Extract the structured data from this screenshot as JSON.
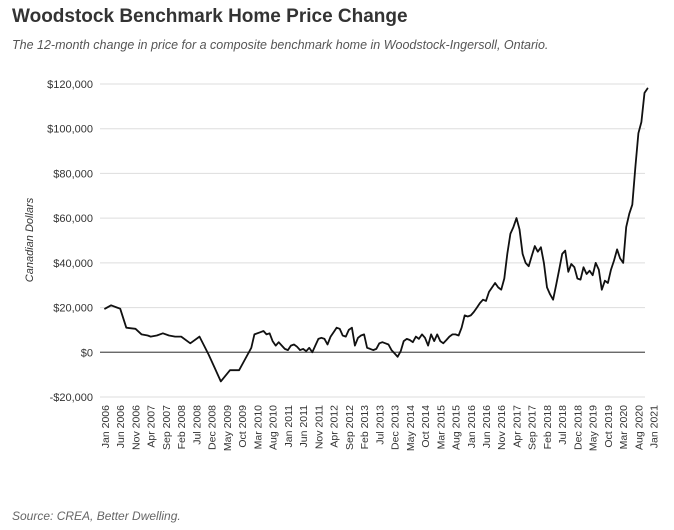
{
  "header": {
    "title": "Woodstock Benchmark Home Price Change",
    "subtitle": "The 12-month change in price for a composite benchmark home in Woodstock-Ingersoll, Ontario."
  },
  "footer": {
    "source": "Source: CREA, Better Dwelling."
  },
  "chart_data": {
    "type": "line",
    "title": "Woodstock Benchmark Home Price Change",
    "xlabel": "",
    "ylabel": "Canadian Dollars",
    "ylim": [
      -20000,
      120000
    ],
    "yticks": [
      -20000,
      0,
      20000,
      40000,
      60000,
      80000,
      100000,
      120000
    ],
    "ytick_labels": [
      "-$20,000",
      "$0",
      "$20,000",
      "$40,000",
      "$60,000",
      "$80,000",
      "$100,000",
      "$120,000"
    ],
    "grid": "horizontal",
    "line_color": "#111111",
    "grid_color": "#dddddd",
    "zero_line_color": "#555555",
    "x_start": "Jan 2006",
    "x_labels": [
      "Jan 2006",
      "Jun 2006",
      "Nov 2006",
      "Apr 2007",
      "Sep 2007",
      "Feb 2008",
      "Jul 2008",
      "Dec 2008",
      "May 2009",
      "Oct 2009",
      "Mar 2010",
      "Aug 2010",
      "Jan 2011",
      "Jun 2011",
      "Nov 2011",
      "Apr 2012",
      "Sep 2012",
      "Feb 2013",
      "Jul 2013",
      "Dec 2013",
      "May 2014",
      "Oct 2014",
      "Mar 2015",
      "Aug 2015",
      "Jan 2016",
      "Jun 2016",
      "Nov 2016",
      "Apr 2017",
      "Sep 2017",
      "Feb 2018",
      "Jul 2018",
      "Dec 2018",
      "May 2019",
      "Oct 2019",
      "Mar 2020",
      "Aug 2020",
      "Jan 2021"
    ],
    "series": [
      {
        "name": "12-month change",
        "points": [
          [
            0,
            19500
          ],
          [
            2,
            21000
          ],
          [
            4,
            20000
          ],
          [
            5,
            19500
          ],
          [
            7,
            11000
          ],
          [
            10,
            10500
          ],
          [
            12,
            8000
          ],
          [
            14,
            7500
          ],
          [
            15,
            7000
          ],
          [
            17,
            7500
          ],
          [
            19,
            8500
          ],
          [
            21,
            7500
          ],
          [
            23,
            7000
          ],
          [
            25,
            7000
          ],
          [
            28,
            4000
          ],
          [
            31,
            7000
          ],
          [
            34,
            -1000
          ],
          [
            36,
            -7000
          ],
          [
            38,
            -13000
          ],
          [
            41,
            -8000
          ],
          [
            44,
            -8000
          ],
          [
            46,
            -3000
          ],
          [
            48,
            2000
          ],
          [
            49,
            8000
          ],
          [
            51,
            9000
          ],
          [
            52,
            9500
          ],
          [
            53,
            8000
          ],
          [
            54,
            8500
          ],
          [
            55,
            5000
          ],
          [
            56,
            3000
          ],
          [
            57,
            4500
          ],
          [
            58,
            3000
          ],
          [
            59,
            1500
          ],
          [
            60,
            1000
          ],
          [
            61,
            3000
          ],
          [
            62,
            3500
          ],
          [
            63,
            2500
          ],
          [
            64,
            1000
          ],
          [
            65,
            1500
          ],
          [
            66,
            500
          ],
          [
            67,
            2000
          ],
          [
            68,
            0
          ],
          [
            69,
            3000
          ],
          [
            70,
            6000
          ],
          [
            71,
            6500
          ],
          [
            72,
            6000
          ],
          [
            73,
            3500
          ],
          [
            74,
            7000
          ],
          [
            75,
            9000
          ],
          [
            76,
            11000
          ],
          [
            77,
            10500
          ],
          [
            78,
            7500
          ],
          [
            79,
            7000
          ],
          [
            80,
            10000
          ],
          [
            81,
            11000
          ],
          [
            82,
            3000
          ],
          [
            83,
            6500
          ],
          [
            84,
            7500
          ],
          [
            85,
            8000
          ],
          [
            86,
            2000
          ],
          [
            87,
            1500
          ],
          [
            88,
            1000
          ],
          [
            89,
            1500
          ],
          [
            90,
            4000
          ],
          [
            91,
            4500
          ],
          [
            92,
            4000
          ],
          [
            93,
            3500
          ],
          [
            94,
            1000
          ],
          [
            95,
            -500
          ],
          [
            96,
            -2000
          ],
          [
            97,
            500
          ],
          [
            98,
            5000
          ],
          [
            99,
            6000
          ],
          [
            100,
            5500
          ],
          [
            101,
            4500
          ],
          [
            102,
            7000
          ],
          [
            103,
            6000
          ],
          [
            104,
            8000
          ],
          [
            105,
            6500
          ],
          [
            106,
            3000
          ],
          [
            107,
            8000
          ],
          [
            108,
            5000
          ],
          [
            109,
            8000
          ],
          [
            110,
            5000
          ],
          [
            111,
            4000
          ],
          [
            112,
            5500
          ],
          [
            113,
            7000
          ],
          [
            114,
            8000
          ],
          [
            115,
            8000
          ],
          [
            116,
            7500
          ],
          [
            117,
            11000
          ],
          [
            118,
            16500
          ],
          [
            119,
            16000
          ],
          [
            120,
            16500
          ],
          [
            121,
            18000
          ],
          [
            122,
            20000
          ],
          [
            123,
            22000
          ],
          [
            124,
            23500
          ],
          [
            125,
            23000
          ],
          [
            126,
            27000
          ],
          [
            127,
            29000
          ],
          [
            128,
            31000
          ],
          [
            129,
            29000
          ],
          [
            130,
            28000
          ],
          [
            131,
            33000
          ],
          [
            132,
            44000
          ],
          [
            133,
            53000
          ],
          [
            134,
            56000
          ],
          [
            135,
            60000
          ],
          [
            136,
            55000
          ],
          [
            137,
            44000
          ],
          [
            138,
            40000
          ],
          [
            139,
            38500
          ],
          [
            140,
            43000
          ],
          [
            141,
            47500
          ],
          [
            142,
            45000
          ],
          [
            143,
            47000
          ],
          [
            144,
            40000
          ],
          [
            145,
            29000
          ],
          [
            146,
            26000
          ],
          [
            147,
            23500
          ],
          [
            148,
            30000
          ],
          [
            149,
            37000
          ],
          [
            150,
            44000
          ],
          [
            151,
            45500
          ],
          [
            152,
            36000
          ],
          [
            153,
            39500
          ],
          [
            154,
            38000
          ],
          [
            155,
            33000
          ],
          [
            156,
            32500
          ],
          [
            157,
            38000
          ],
          [
            158,
            35000
          ],
          [
            159,
            36500
          ],
          [
            160,
            34500
          ],
          [
            161,
            40000
          ],
          [
            162,
            37000
          ],
          [
            163,
            28000
          ],
          [
            164,
            32000
          ],
          [
            165,
            31000
          ],
          [
            166,
            37000
          ],
          [
            167,
            41000
          ],
          [
            168,
            46000
          ],
          [
            169,
            42000
          ],
          [
            170,
            40000
          ],
          [
            171,
            56000
          ],
          [
            172,
            62000
          ],
          [
            173,
            66000
          ],
          [
            174,
            83000
          ],
          [
            175,
            98000
          ],
          [
            176,
            103000
          ],
          [
            177,
            116000
          ],
          [
            178,
            118000
          ]
        ]
      }
    ]
  }
}
